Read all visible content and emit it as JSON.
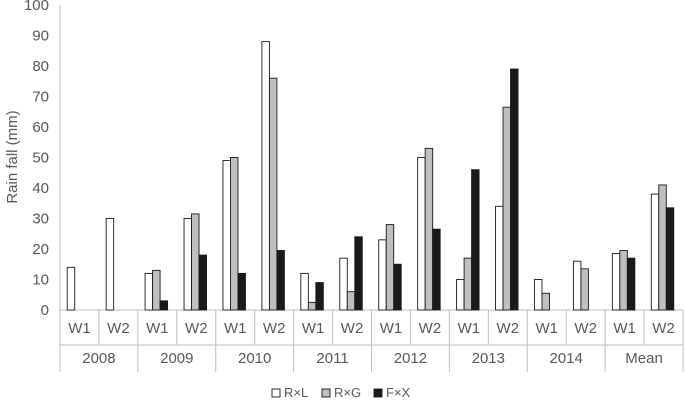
{
  "chart_data": {
    "type": "bar",
    "ylabel": "Rain fall (mm)",
    "ylim": [
      0,
      100
    ],
    "yticks": [
      0,
      10,
      20,
      30,
      40,
      50,
      60,
      70,
      80,
      90,
      100
    ],
    "groups": [
      "2008",
      "2009",
      "2010",
      "2011",
      "2012",
      "2013",
      "2014",
      "Mean"
    ],
    "subcategories": [
      "W1",
      "W2"
    ],
    "categories": [
      "2008 W1",
      "2008 W2",
      "2009 W1",
      "2009 W2",
      "2010 W1",
      "2010 W2",
      "2011 W1",
      "2011 W2",
      "2012 W1",
      "2012 W2",
      "2013 W1",
      "2013 W2",
      "2014 W1",
      "2014 W2",
      "Mean W1",
      "Mean W2"
    ],
    "series": [
      {
        "name": "R×L",
        "color": "#ffffff",
        "values": [
          14,
          30,
          12,
          30,
          49,
          88,
          12,
          17,
          23,
          50,
          10,
          34,
          10,
          16,
          18.5,
          38
        ]
      },
      {
        "name": "R×G",
        "color": "#bfbfbf",
        "values": [
          null,
          null,
          13,
          31.5,
          50,
          76,
          2.5,
          6,
          28,
          53,
          17,
          66.5,
          5.5,
          13.5,
          19.5,
          41
        ]
      },
      {
        "name": "F×X",
        "color": "#1a1a1a",
        "values": [
          null,
          null,
          3,
          18,
          12,
          19.5,
          9,
          24,
          15,
          26.5,
          46,
          79,
          null,
          null,
          17,
          33.5
        ]
      }
    ],
    "grid": false,
    "legend_position": "bottom"
  }
}
